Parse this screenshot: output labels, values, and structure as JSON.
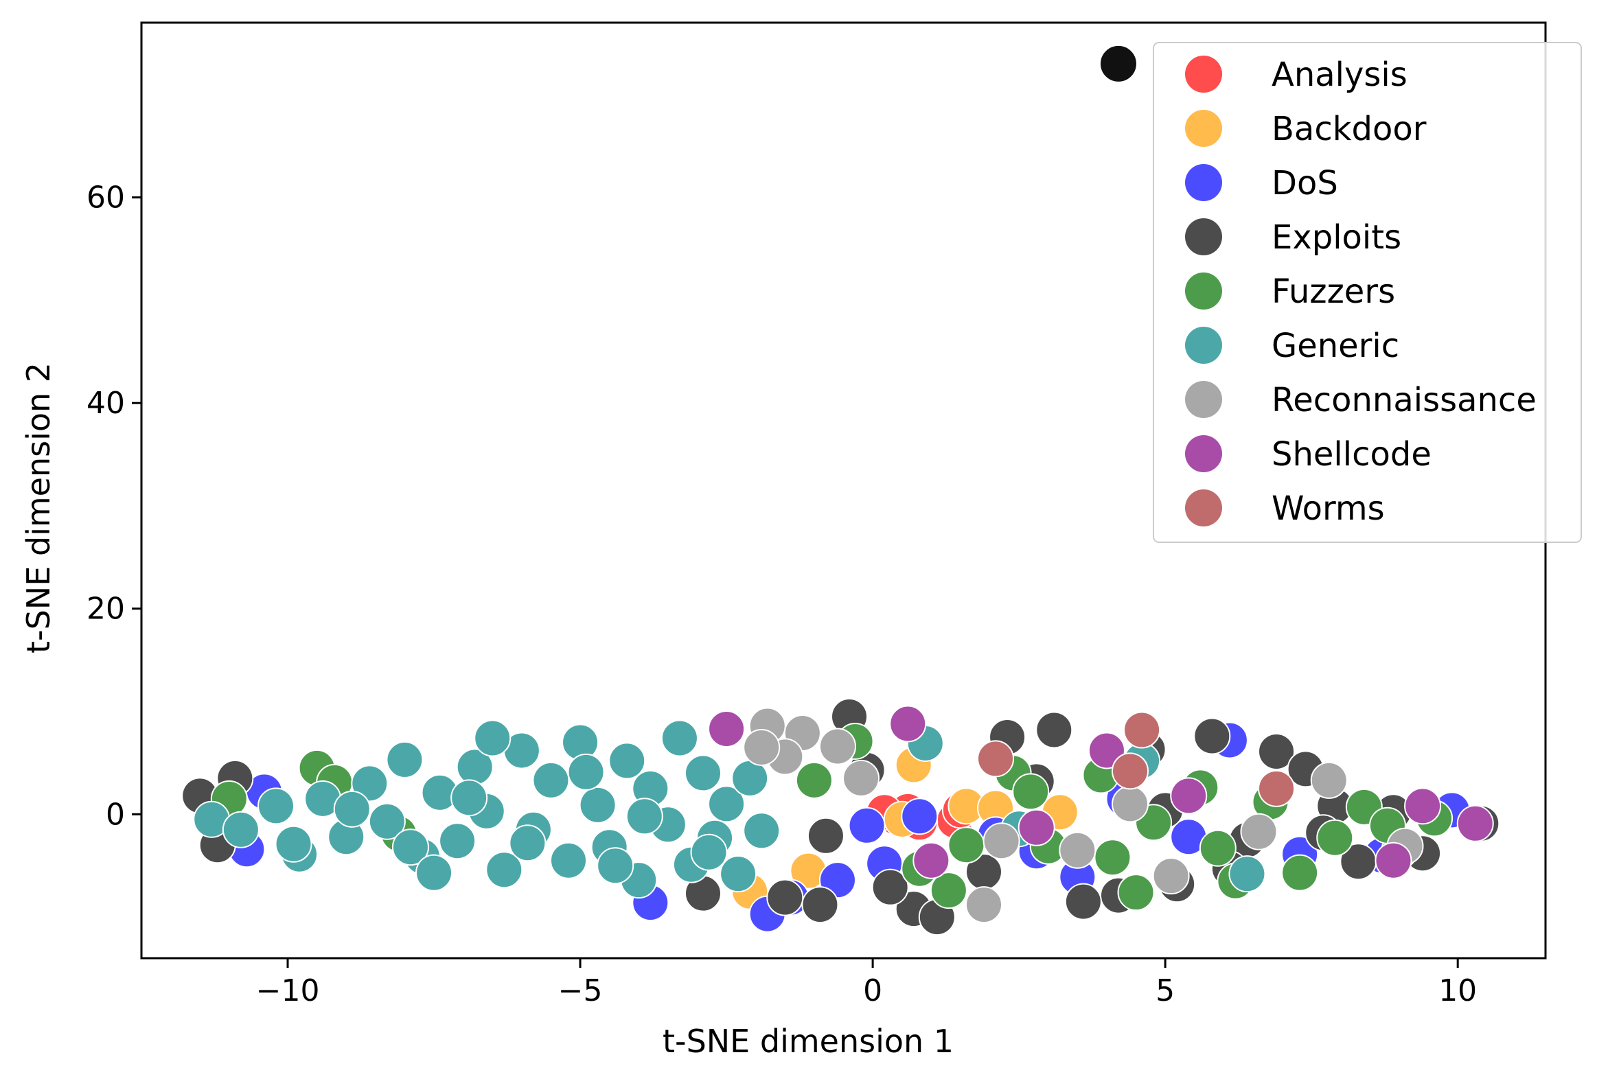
{
  "chart_data": {
    "type": "scatter",
    "title": "",
    "xlabel": "t-SNE dimension 1",
    "ylabel": "t-SNE dimension 2",
    "xlim": [
      -12.5,
      11.5
    ],
    "ylim": [
      -14,
      77
    ],
    "xticks": [
      -10,
      -5,
      0,
      5,
      10
    ],
    "xtick_labels": [
      "−10",
      "−5",
      "0",
      "5",
      "10"
    ],
    "yticks": [
      0,
      20,
      40,
      60
    ],
    "ytick_labels": [
      "0",
      "20",
      "40",
      "60"
    ],
    "grid": false,
    "legend_position": "top-right",
    "series": [
      {
        "name": "Analysis",
        "color": "#ff4c4c",
        "points": [
          [
            0.4,
            -0.3
          ],
          [
            0.6,
            0.3
          ],
          [
            1.4,
            -0.6
          ],
          [
            1.5,
            0.4
          ],
          [
            0.8,
            -0.8
          ],
          [
            0.2,
            0.2
          ]
        ]
      },
      {
        "name": "Backdoor",
        "color": "#ffbb4c",
        "points": [
          [
            0.7,
            4.8
          ],
          [
            -1.1,
            -5.5
          ],
          [
            1.6,
            0.8
          ],
          [
            3.2,
            0.2
          ],
          [
            -2.1,
            -7.5
          ],
          [
            0.5,
            -0.5
          ],
          [
            2.1,
            0.6
          ]
        ]
      },
      {
        "name": "DoS",
        "color": "#4c4cff",
        "points": [
          [
            -10.7,
            -3.4
          ],
          [
            -10.4,
            2.2
          ],
          [
            -3.8,
            -8.6
          ],
          [
            -1.8,
            -9.7
          ],
          [
            -0.1,
            -1.1
          ],
          [
            0.8,
            -0.2
          ],
          [
            2.8,
            -3.6
          ],
          [
            4.3,
            1.5
          ],
          [
            5.4,
            -2.2
          ],
          [
            6.1,
            7.2
          ],
          [
            8.7,
            -4.0
          ],
          [
            9.9,
            0.4
          ],
          [
            -1.4,
            -8.1
          ],
          [
            0.2,
            -4.8
          ],
          [
            3.5,
            -6.1
          ],
          [
            7.3,
            -3.9
          ],
          [
            -0.6,
            -6.4
          ],
          [
            2.1,
            -2.0
          ]
        ]
      },
      {
        "name": "Exploits",
        "color": "#4c4c4c",
        "points": [
          [
            -11.5,
            1.8
          ],
          [
            -11.2,
            -3.0
          ],
          [
            -10.9,
            3.5
          ],
          [
            -2.9,
            -7.7
          ],
          [
            -1.5,
            -8.1
          ],
          [
            -0.4,
            9.5
          ],
          [
            -0.1,
            4.3
          ],
          [
            0.7,
            -9.2
          ],
          [
            1.1,
            -10.0
          ],
          [
            2.3,
            7.5
          ],
          [
            3.1,
            8.2
          ],
          [
            4.2,
            -7.9
          ],
          [
            4.7,
            6.3
          ],
          [
            5.2,
            -6.8
          ],
          [
            5.8,
            7.6
          ],
          [
            6.4,
            -2.5
          ],
          [
            6.9,
            6.1
          ],
          [
            7.4,
            4.4
          ],
          [
            7.9,
            0.8
          ],
          [
            8.3,
            -4.6
          ],
          [
            8.9,
            0.2
          ],
          [
            9.4,
            -3.8
          ],
          [
            10.4,
            -0.9
          ],
          [
            -0.8,
            -2.1
          ],
          [
            2.8,
            3.2
          ],
          [
            3.6,
            -8.5
          ],
          [
            6.1,
            -5.3
          ],
          [
            7.7,
            -1.8
          ],
          [
            1.9,
            -5.6
          ],
          [
            5.0,
            0.4
          ],
          [
            -0.9,
            -8.8
          ],
          [
            0.3,
            -7.1
          ]
        ]
      },
      {
        "name": "Fuzzers",
        "color": "#4c9c4c",
        "points": [
          [
            -11.0,
            1.5
          ],
          [
            -9.5,
            4.5
          ],
          [
            -9.2,
            3.1
          ],
          [
            -8.1,
            -1.9
          ],
          [
            -1.0,
            3.3
          ],
          [
            -0.3,
            7.1
          ],
          [
            0.8,
            -5.3
          ],
          [
            1.3,
            -7.4
          ],
          [
            2.4,
            4.0
          ],
          [
            3.0,
            -3.1
          ],
          [
            3.9,
            3.8
          ],
          [
            4.5,
            -7.6
          ],
          [
            4.8,
            -0.8
          ],
          [
            5.6,
            2.6
          ],
          [
            6.2,
            -6.5
          ],
          [
            6.8,
            1.2
          ],
          [
            7.3,
            -5.7
          ],
          [
            7.9,
            -2.3
          ],
          [
            8.4,
            0.7
          ],
          [
            9.0,
            -3.6
          ],
          [
            9.6,
            -0.4
          ],
          [
            2.7,
            2.2
          ],
          [
            4.1,
            -4.2
          ],
          [
            5.9,
            -3.3
          ],
          [
            8.8,
            -1.1
          ],
          [
            1.6,
            -3.0
          ]
        ]
      },
      {
        "name": "Generic",
        "color": "#4ca8a8",
        "points": [
          [
            -11.3,
            -0.5
          ],
          [
            -10.8,
            -1.5
          ],
          [
            -10.2,
            0.8
          ],
          [
            -9.8,
            -3.9
          ],
          [
            -9.4,
            1.5
          ],
          [
            -9.0,
            -2.2
          ],
          [
            -8.6,
            3.0
          ],
          [
            -8.3,
            -0.7
          ],
          [
            -8.0,
            5.3
          ],
          [
            -7.7,
            -4.1
          ],
          [
            -7.4,
            2.1
          ],
          [
            -7.1,
            -2.6
          ],
          [
            -6.8,
            4.6
          ],
          [
            -6.6,
            0.3
          ],
          [
            -6.3,
            -5.4
          ],
          [
            -6.0,
            6.2
          ],
          [
            -5.8,
            -1.5
          ],
          [
            -5.5,
            3.3
          ],
          [
            -5.2,
            -4.5
          ],
          [
            -5.0,
            7.0
          ],
          [
            -4.7,
            0.9
          ],
          [
            -4.5,
            -3.2
          ],
          [
            -4.2,
            5.2
          ],
          [
            -4.0,
            -6.4
          ],
          [
            -3.8,
            2.5
          ],
          [
            -3.5,
            -1.0
          ],
          [
            -3.3,
            7.4
          ],
          [
            -3.1,
            -4.9
          ],
          [
            -2.9,
            4.0
          ],
          [
            -2.7,
            -2.3
          ],
          [
            -2.5,
            1.0
          ],
          [
            -2.3,
            -5.8
          ],
          [
            -2.1,
            3.5
          ],
          [
            -1.9,
            -1.6
          ],
          [
            -8.9,
            0.5
          ],
          [
            -7.9,
            -3.2
          ],
          [
            -6.9,
            1.6
          ],
          [
            -5.9,
            -2.8
          ],
          [
            -4.9,
            4.1
          ],
          [
            -3.9,
            -0.2
          ],
          [
            -2.8,
            -3.7
          ],
          [
            -6.5,
            7.4
          ],
          [
            -4.4,
            -5.0
          ],
          [
            -7.5,
            -5.7
          ],
          [
            -9.9,
            -2.9
          ],
          [
            0.9,
            6.9
          ],
          [
            6.4,
            -5.8
          ],
          [
            2.5,
            -1.4
          ],
          [
            4.6,
            5.2
          ]
        ]
      },
      {
        "name": "Reconnaissance",
        "color": "#a8a8a8",
        "points": [
          [
            -1.8,
            8.6
          ],
          [
            -1.2,
            7.9
          ],
          [
            -0.6,
            6.6
          ],
          [
            -1.5,
            5.6
          ],
          [
            2.2,
            -2.6
          ],
          [
            3.5,
            -3.5
          ],
          [
            5.1,
            -6.0
          ],
          [
            6.6,
            -1.7
          ],
          [
            7.8,
            3.3
          ],
          [
            9.1,
            -3.1
          ],
          [
            1.9,
            -8.8
          ],
          [
            4.4,
            1.0
          ],
          [
            -0.2,
            3.5
          ],
          [
            -1.9,
            6.5
          ]
        ]
      },
      {
        "name": "Shellcode",
        "color": "#a84ca8",
        "points": [
          [
            -2.5,
            8.3
          ],
          [
            0.6,
            8.8
          ],
          [
            1.0,
            -4.5
          ],
          [
            2.8,
            -1.3
          ],
          [
            5.4,
            1.8
          ],
          [
            8.9,
            -4.5
          ],
          [
            10.3,
            -0.9
          ],
          [
            4.0,
            6.2
          ],
          [
            9.4,
            0.8
          ]
        ]
      },
      {
        "name": "Worms",
        "color": "#c06c6c",
        "points": [
          [
            2.1,
            5.4
          ],
          [
            4.6,
            8.2
          ],
          [
            6.9,
            2.5
          ],
          [
            4.4,
            4.2
          ]
        ]
      }
    ],
    "outliers": [
      {
        "series": "Exploits",
        "x": 4.2,
        "y": 73
      }
    ]
  }
}
